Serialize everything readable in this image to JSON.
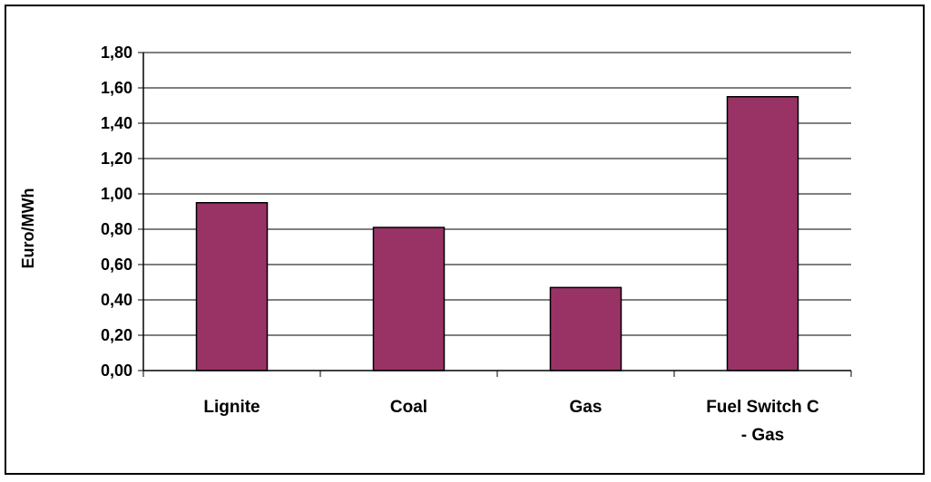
{
  "chart_data": {
    "type": "bar",
    "title": "",
    "xlabel": "",
    "ylabel": "Euro/MWh",
    "categories": [
      "Lignite",
      "Coal",
      "Gas",
      "Fuel Switch C - Gas"
    ],
    "category_label_lines": [
      [
        "Lignite"
      ],
      [
        "Coal"
      ],
      [
        "Gas"
      ],
      [
        "Fuel Switch C",
        "- Gas"
      ]
    ],
    "values": [
      0.95,
      0.81,
      0.47,
      1.55
    ],
    "ylim": [
      0,
      1.8
    ],
    "yticks": [
      0,
      0.2,
      0.4,
      0.6,
      0.8,
      1.0,
      1.2,
      1.4,
      1.6,
      1.8
    ],
    "ytick_labels": [
      "0,00",
      "0,20",
      "0,40",
      "0,60",
      "0,80",
      "1,00",
      "1,20",
      "1,40",
      "1,60",
      "1,80"
    ],
    "grid": true,
    "legend": "none",
    "colors": {
      "bar_fill": "#993366",
      "bar_stroke": "#000000",
      "grid": "#000000"
    }
  }
}
